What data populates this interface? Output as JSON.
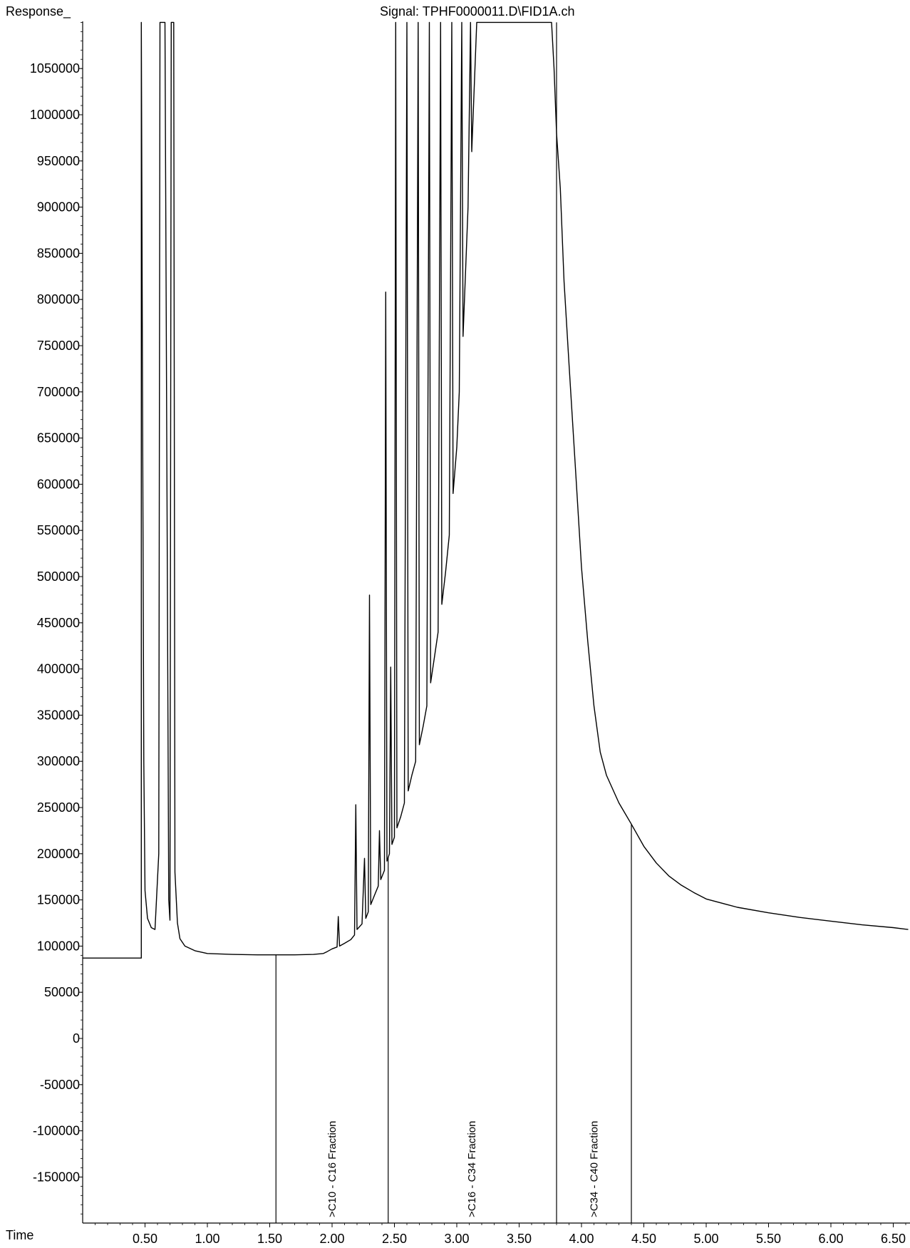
{
  "chart_data": {
    "type": "line",
    "title": "Signal: TPHF0000011.D\\FID1A.ch",
    "ylabel": "Response_",
    "xlabel": "Time",
    "x_ticks": [
      "0.50",
      "1.00",
      "1.50",
      "2.00",
      "2.50",
      "3.00",
      "3.50",
      "4.00",
      "4.50",
      "5.00",
      "5.50",
      "6.00",
      "6.50"
    ],
    "y_ticks": [
      "1050000",
      "1000000",
      "950000",
      "900000",
      "850000",
      "800000",
      "750000",
      "700000",
      "650000",
      "600000",
      "550000",
      "500000",
      "450000",
      "400000",
      "350000",
      "300000",
      "250000",
      "200000",
      "150000",
      "100000",
      "50000",
      "0",
      "-50000",
      "-100000",
      "-150000"
    ],
    "xlim": [
      0.0,
      6.62
    ],
    "ylim": [
      -195000,
      1100000
    ],
    "baseline_segments": [
      {
        "x": [
          1.55,
          2.45
        ]
      },
      {
        "x": [
          2.45,
          3.8
        ]
      },
      {
        "x": [
          3.8,
          4.4
        ]
      }
    ],
    "fraction_labels": [
      {
        "x": 2.0,
        "text": "C10 - C16 Fraction"
      },
      {
        "x": 3.12,
        "text": "C16 - C34 Fraction"
      },
      {
        "x": 4.1,
        "text": "C34 - C40 Fraction"
      }
    ],
    "series": [
      {
        "color": "#000000",
        "points": [
          [
            0.0,
            87000
          ],
          [
            0.47,
            87000
          ],
          [
            0.47,
            1100000
          ],
          [
            0.48,
            700000
          ],
          [
            0.49,
            300000
          ],
          [
            0.5,
            160000
          ],
          [
            0.52,
            130000
          ],
          [
            0.55,
            120000
          ],
          [
            0.58,
            118000
          ],
          [
            0.61,
            200000
          ],
          [
            0.62,
            1100000
          ],
          [
            0.66,
            1100000
          ],
          [
            0.69,
            150000
          ],
          [
            0.7,
            128000
          ],
          [
            0.71,
            1100000
          ],
          [
            0.73,
            1100000
          ],
          [
            0.74,
            180000
          ],
          [
            0.76,
            125000
          ],
          [
            0.78,
            108000
          ],
          [
            0.82,
            100000
          ],
          [
            0.9,
            95000
          ],
          [
            1.0,
            92000
          ],
          [
            1.2,
            91000
          ],
          [
            1.4,
            90500
          ],
          [
            1.55,
            90500
          ],
          [
            1.7,
            90500
          ],
          [
            1.85,
            91000
          ],
          [
            1.93,
            92000
          ],
          [
            1.96,
            94000
          ],
          [
            2.0,
            97000
          ],
          [
            2.04,
            99000
          ],
          [
            2.05,
            132000
          ],
          [
            2.06,
            100000
          ],
          [
            2.1,
            103000
          ],
          [
            2.15,
            107000
          ],
          [
            2.18,
            112000
          ],
          [
            2.19,
            253000
          ],
          [
            2.2,
            118000
          ],
          [
            2.24,
            124000
          ],
          [
            2.26,
            195000
          ],
          [
            2.27,
            130000
          ],
          [
            2.29,
            137000
          ],
          [
            2.3,
            480000
          ],
          [
            2.31,
            145000
          ],
          [
            2.34,
            155000
          ],
          [
            2.37,
            165000
          ],
          [
            2.38,
            225000
          ],
          [
            2.39,
            172000
          ],
          [
            2.42,
            182000
          ],
          [
            2.43,
            808000
          ],
          [
            2.44,
            192000
          ],
          [
            2.46,
            200000
          ],
          [
            2.47,
            402000
          ],
          [
            2.48,
            210000
          ],
          [
            2.5,
            218000
          ],
          [
            2.51,
            1100000
          ],
          [
            2.52,
            228000
          ],
          [
            2.55,
            240000
          ],
          [
            2.58,
            255000
          ],
          [
            2.6,
            1100000
          ],
          [
            2.61,
            268000
          ],
          [
            2.64,
            285000
          ],
          [
            2.67,
            300000
          ],
          [
            2.69,
            1100000
          ],
          [
            2.7,
            318000
          ],
          [
            2.73,
            338000
          ],
          [
            2.76,
            360000
          ],
          [
            2.78,
            1100000
          ],
          [
            2.79,
            385000
          ],
          [
            2.82,
            412000
          ],
          [
            2.85,
            440000
          ],
          [
            2.87,
            1100000
          ],
          [
            2.88,
            470000
          ],
          [
            2.91,
            505000
          ],
          [
            2.94,
            545000
          ],
          [
            2.96,
            1100000
          ],
          [
            2.97,
            590000
          ],
          [
            3.0,
            640000
          ],
          [
            3.02,
            700000
          ],
          [
            3.04,
            1100000
          ],
          [
            3.05,
            760000
          ],
          [
            3.07,
            830000
          ],
          [
            3.09,
            900000
          ],
          [
            3.11,
            1100000
          ],
          [
            3.12,
            960000
          ],
          [
            3.14,
            1030000
          ],
          [
            3.16,
            1100000
          ],
          [
            3.2,
            1100000
          ],
          [
            3.76,
            1100000
          ],
          [
            3.78,
            1050000
          ],
          [
            3.8,
            980000
          ],
          [
            3.83,
            920000
          ],
          [
            3.86,
            820000
          ],
          [
            3.9,
            730000
          ],
          [
            3.95,
            620000
          ],
          [
            4.0,
            510000
          ],
          [
            4.05,
            430000
          ],
          [
            4.1,
            360000
          ],
          [
            4.15,
            310000
          ],
          [
            4.2,
            285000
          ],
          [
            4.3,
            255000
          ],
          [
            4.4,
            232000
          ],
          [
            4.5,
            208000
          ],
          [
            4.6,
            190000
          ],
          [
            4.7,
            176000
          ],
          [
            4.8,
            166000
          ],
          [
            4.9,
            158000
          ],
          [
            5.0,
            151000
          ],
          [
            5.25,
            142000
          ],
          [
            5.5,
            136000
          ],
          [
            5.75,
            131000
          ],
          [
            6.0,
            127000
          ],
          [
            6.25,
            123000
          ],
          [
            6.5,
            120000
          ],
          [
            6.62,
            118000
          ]
        ]
      }
    ]
  }
}
